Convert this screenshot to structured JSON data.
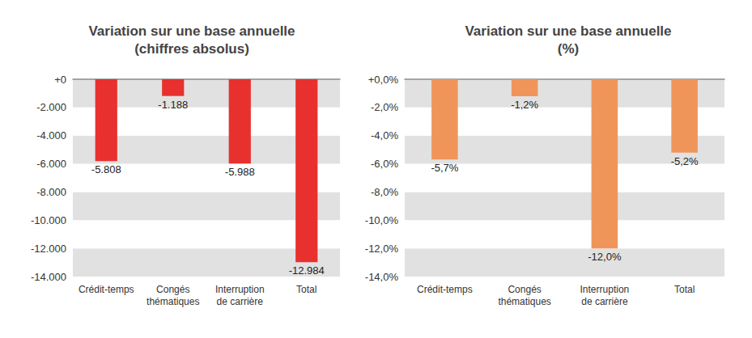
{
  "chart_data": [
    {
      "type": "bar",
      "title": "Variation sur une base annuelle\n(chiffres absolus)",
      "categories": [
        "Crédit-temps",
        "Congés\nthématiques",
        "Interruption\nde carrière",
        "Total"
      ],
      "values": [
        -5808,
        -1188,
        -5988,
        -12984
      ],
      "value_labels": [
        "-5.808",
        "-1.188",
        "-5.988",
        "-12.984"
      ],
      "color": "#e8312f",
      "ylim": [
        -14000,
        0
      ],
      "yticks": [
        {
          "value": -14000,
          "label": "-14.000"
        },
        {
          "value": -12000,
          "label": "-12.000"
        },
        {
          "value": -10000,
          "label": "-10.000"
        },
        {
          "value": -8000,
          "label": "-8.000"
        },
        {
          "value": -6000,
          "label": "-6.000"
        },
        {
          "value": -4000,
          "label": "-4.000"
        },
        {
          "value": -2000,
          "label": "-2.000"
        },
        {
          "value": 0,
          "label": "+0"
        }
      ],
      "grid": true,
      "data_labels": true
    },
    {
      "type": "bar",
      "title": "Variation sur une base annuelle\n(%)",
      "categories": [
        "Crédit-temps",
        "Congés\nthématiques",
        "Interruption\nde carrière",
        "Total"
      ],
      "values": [
        -5.7,
        -1.2,
        -12.0,
        -5.2
      ],
      "value_labels": [
        "-5,7%",
        "-1,2%",
        "-12,0%",
        "-5,2%"
      ],
      "color": "#f0955a",
      "ylim": [
        -14,
        0
      ],
      "yticks": [
        {
          "value": -14,
          "label": "-14,0%"
        },
        {
          "value": -12,
          "label": "-12,0%"
        },
        {
          "value": -10,
          "label": "-10,0%"
        },
        {
          "value": -8,
          "label": "-8,0%"
        },
        {
          "value": -6,
          "label": "-6,0%"
        },
        {
          "value": -4,
          "label": "-4,0%"
        },
        {
          "value": -2,
          "label": "-2,0%"
        },
        {
          "value": 0,
          "label": "+0,0%"
        }
      ],
      "grid": true,
      "data_labels": true
    }
  ]
}
